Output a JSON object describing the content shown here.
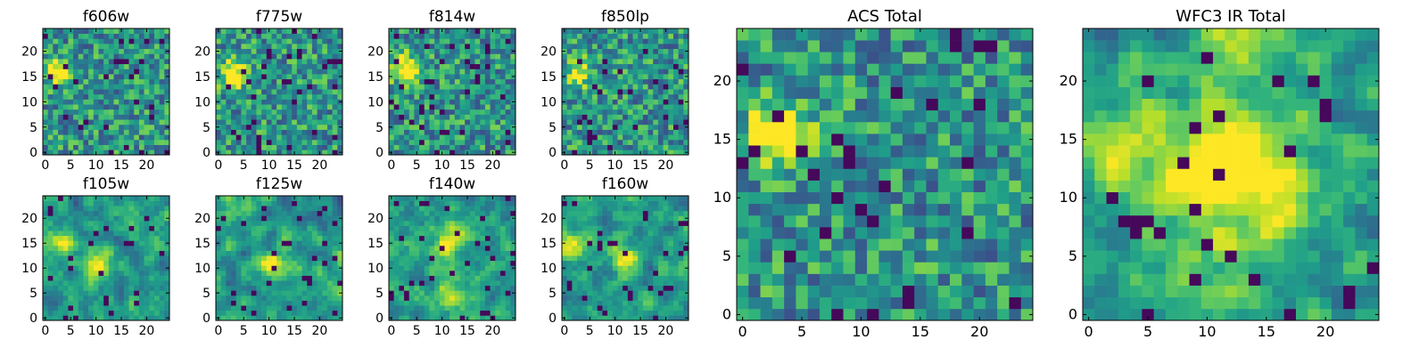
{
  "chart_data": [
    {
      "type": "heatmap",
      "title": "f606w",
      "xticks": [
        "0",
        "5",
        "10",
        "15",
        "20"
      ],
      "yticks": [
        "0",
        "5",
        "10",
        "15",
        "20"
      ],
      "xlim": [
        0,
        25
      ],
      "ylim": [
        0,
        25
      ],
      "bright_spots": [
        {
          "x": 3.5,
          "y": 16.5,
          "w": 1.2
        }
      ],
      "colormap": "viridis"
    },
    {
      "type": "heatmap",
      "title": "f775w",
      "xticks": [
        "0",
        "5",
        "10",
        "15",
        "20"
      ],
      "yticks": [
        "0",
        "5",
        "10",
        "15",
        "20"
      ],
      "xlim": [
        0,
        25
      ],
      "ylim": [
        0,
        25
      ],
      "bright_spots": [
        {
          "x": 3.5,
          "y": 16.0,
          "w": 1.0
        }
      ],
      "colormap": "viridis"
    },
    {
      "type": "heatmap",
      "title": "f814w",
      "xticks": [
        "0",
        "5",
        "10",
        "15",
        "20"
      ],
      "yticks": [
        "0",
        "5",
        "10",
        "15",
        "20"
      ],
      "xlim": [
        0,
        25
      ],
      "ylim": [
        0,
        25
      ],
      "bright_spots": [
        {
          "x": 3.5,
          "y": 17.0,
          "w": 1.0
        }
      ],
      "colormap": "viridis"
    },
    {
      "type": "heatmap",
      "title": "f850lp",
      "xticks": [
        "0",
        "5",
        "10",
        "15",
        "20"
      ],
      "yticks": [
        "0",
        "5",
        "10",
        "15",
        "20"
      ],
      "xlim": [
        0,
        25
      ],
      "ylim": [
        0,
        25
      ],
      "bright_spots": [
        {
          "x": 3.5,
          "y": 16.5,
          "w": 0.8
        }
      ],
      "colormap": "viridis"
    },
    {
      "type": "heatmap",
      "title": "f105w",
      "xticks": [
        "0",
        "5",
        "10",
        "15",
        "20"
      ],
      "yticks": [
        "0",
        "5",
        "10",
        "15",
        "20"
      ],
      "xlim": [
        0,
        25
      ],
      "ylim": [
        0,
        25
      ],
      "bright_spots": [
        {
          "x": 11.5,
          "y": 11.0,
          "w": 0.9
        },
        {
          "x": 3.5,
          "y": 15.0,
          "w": 0.6
        }
      ],
      "colormap": "viridis"
    },
    {
      "type": "heatmap",
      "title": "f125w",
      "xticks": [
        "0",
        "5",
        "10",
        "15",
        "20"
      ],
      "yticks": [
        "0",
        "5",
        "10",
        "15",
        "20"
      ],
      "xlim": [
        0,
        25
      ],
      "ylim": [
        0,
        25
      ],
      "bright_spots": [
        {
          "x": 12.0,
          "y": 11.0,
          "w": 0.7
        }
      ],
      "colormap": "viridis"
    },
    {
      "type": "heatmap",
      "title": "f140w",
      "xticks": [
        "0",
        "5",
        "10",
        "15",
        "20"
      ],
      "yticks": [
        "0",
        "5",
        "10",
        "15",
        "20"
      ],
      "xlim": [
        0,
        25
      ],
      "ylim": [
        0,
        25
      ],
      "bright_spots": [
        {
          "x": 12.0,
          "y": 15.0,
          "w": 0.8
        },
        {
          "x": 12.5,
          "y": 5.0,
          "w": 0.7
        }
      ],
      "colormap": "viridis"
    },
    {
      "type": "heatmap",
      "title": "f160w",
      "xticks": [
        "0",
        "5",
        "10",
        "15",
        "20"
      ],
      "yticks": [
        "0",
        "5",
        "10",
        "15",
        "20"
      ],
      "xlim": [
        0,
        25
      ],
      "ylim": [
        0,
        25
      ],
      "bright_spots": [
        {
          "x": 12.5,
          "y": 12.0,
          "w": 0.9
        },
        {
          "x": 3.0,
          "y": 15.5,
          "w": 0.6
        }
      ],
      "colormap": "viridis"
    },
    {
      "type": "heatmap",
      "title": "ACS Total",
      "xticks": [
        "0",
        "5",
        "10",
        "15",
        "20"
      ],
      "yticks": [
        "0",
        "5",
        "10",
        "15",
        "20"
      ],
      "xlim": [
        0,
        25
      ],
      "ylim": [
        0,
        25
      ],
      "bright_spots": [
        {
          "x": 3.5,
          "y": 16.0,
          "w": 1.6
        }
      ],
      "colormap": "viridis"
    },
    {
      "type": "heatmap",
      "title": "WFC3 IR Total",
      "xticks": [
        "0",
        "5",
        "10",
        "15",
        "20"
      ],
      "yticks": [
        "0",
        "5",
        "10",
        "15",
        "20"
      ],
      "xlim": [
        0,
        25
      ],
      "ylim": [
        0,
        25
      ],
      "bright_spots": [
        {
          "x": 12.5,
          "y": 12.0,
          "w": 1.0
        },
        {
          "x": 3.0,
          "y": 15.5,
          "w": 0.7
        },
        {
          "x": 13.5,
          "y": 23.5,
          "w": 0.6
        }
      ],
      "colormap": "viridis"
    }
  ]
}
